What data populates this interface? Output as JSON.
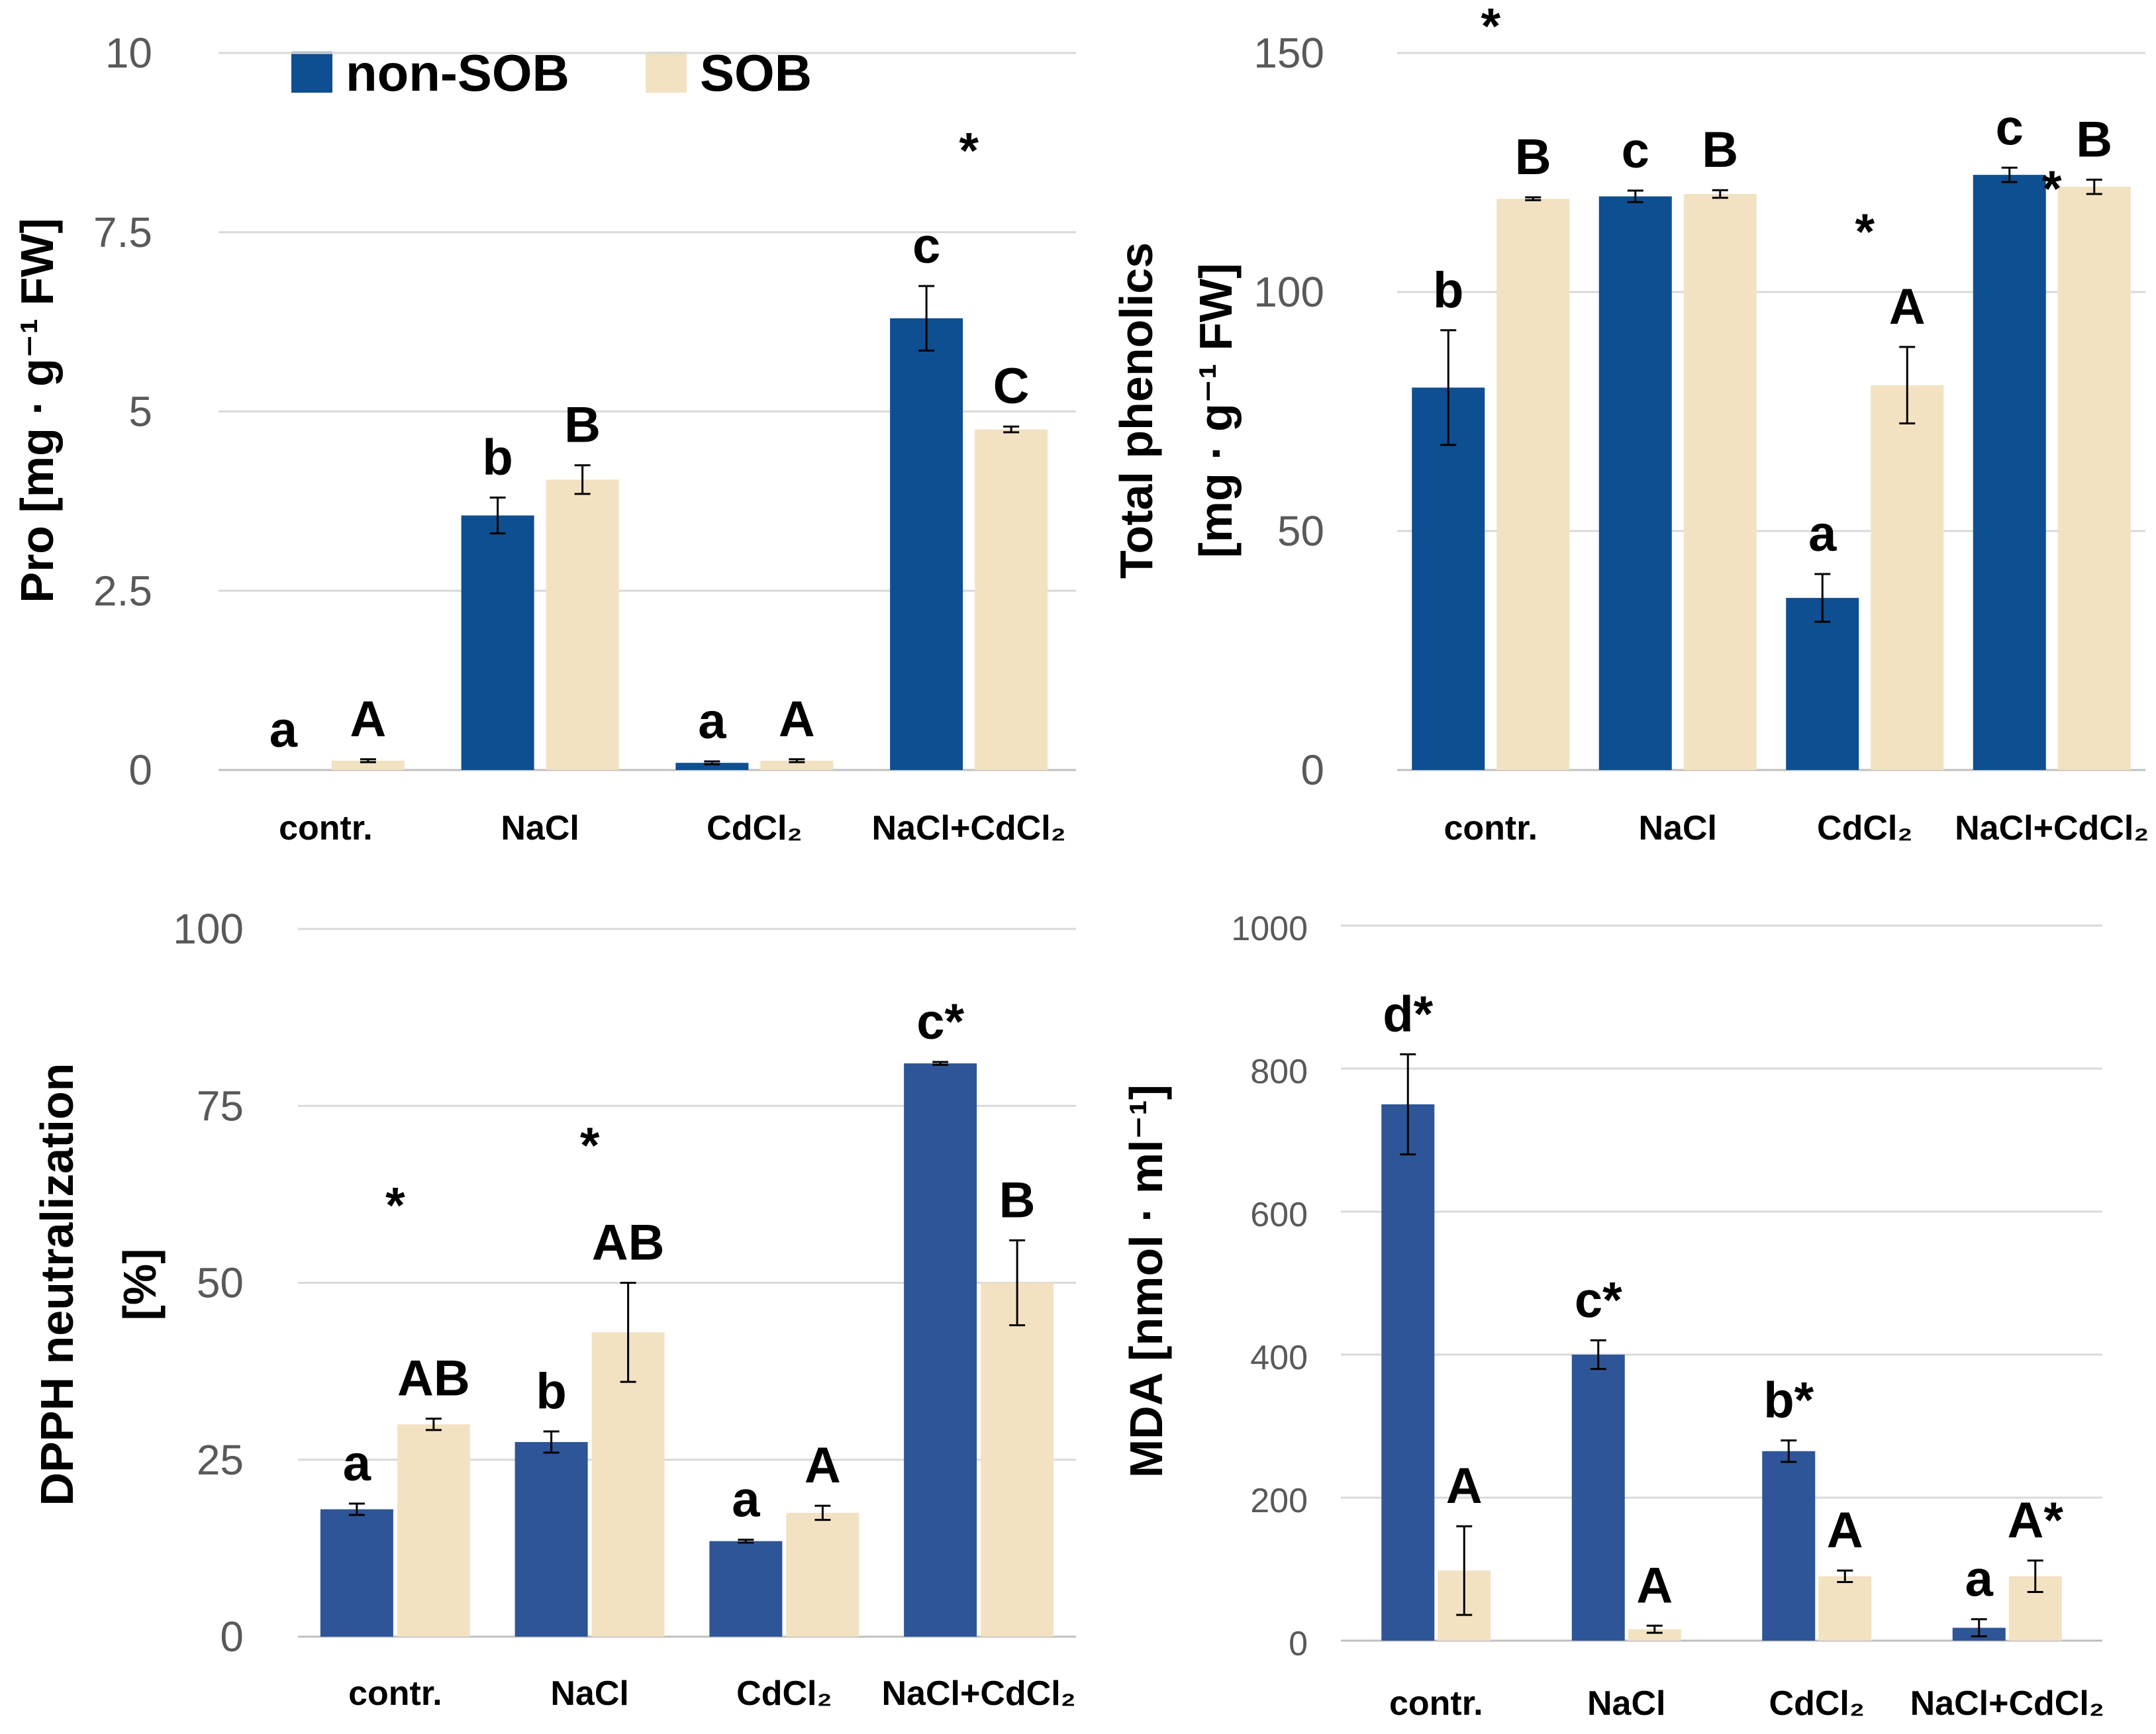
{
  "legend": {
    "series": [
      {
        "name": "non-SOB",
        "color": "#0E4F91"
      },
      {
        "name": "SOB",
        "color": "#F2E2C2"
      }
    ]
  },
  "chart_data": [
    {
      "id": "pro",
      "type": "bar",
      "title": "",
      "xlabel": "",
      "ylabel": "Pro [mg · g⁻¹ FW]",
      "ylim": [
        0,
        10
      ],
      "yticks": [
        "0",
        "2.5",
        "5",
        "7.5",
        "10"
      ],
      "ytick_values": [
        0,
        2.5,
        5,
        7.5,
        10
      ],
      "grid": true,
      "categories": [
        "contr.",
        "NaCl",
        "CdCl₂",
        "NaCl+CdCl₂"
      ],
      "colors": [
        "#0E4F91",
        "#F2E2C2"
      ],
      "series": [
        {
          "name": "non-SOB",
          "values": [
            0,
            3.55,
            0.1,
            6.3
          ],
          "errors": [
            0,
            0.25,
            0.02,
            0.45
          ],
          "labels": [
            "a",
            "b",
            "a",
            "c"
          ],
          "stars": [
            "",
            "",
            "",
            ""
          ]
        },
        {
          "name": "SOB",
          "values": [
            0.13,
            4.05,
            0.13,
            4.75
          ],
          "errors": [
            0.02,
            0.2,
            0.02,
            0.04
          ],
          "labels": [
            "A",
            "B",
            "A",
            "C"
          ],
          "stars": [
            "",
            "",
            "",
            ""
          ]
        }
      ],
      "annotations": [
        {
          "text": "*",
          "category": 3,
          "value": 8.4
        }
      ]
    },
    {
      "id": "phenolics",
      "type": "bar",
      "title": "",
      "xlabel": "",
      "ylabel": [
        "Total phenolics",
        "[mg · g⁻¹ FW]"
      ],
      "ylim": [
        0,
        150
      ],
      "yticks": [
        "0",
        "50",
        "100",
        "150"
      ],
      "ytick_values": [
        0,
        50,
        100,
        150
      ],
      "grid": true,
      "categories": [
        "contr.",
        "NaCl",
        "CdCl₂",
        "NaCl+CdCl₂"
      ],
      "colors": [
        "#0E4F91",
        "#F2E2C2"
      ],
      "series": [
        {
          "name": "non-SOB",
          "values": [
            80,
            120,
            36,
            124.5
          ],
          "errors": [
            12,
            1.2,
            5,
            1.5
          ],
          "labels": [
            "b",
            "c",
            "a",
            "c"
          ],
          "stars": [
            "",
            "",
            "",
            ""
          ]
        },
        {
          "name": "SOB",
          "values": [
            119.5,
            120.5,
            80.5,
            122
          ],
          "errors": [
            0.3,
            0.8,
            8,
            1.5
          ],
          "labels": [
            "B",
            "B",
            "A",
            "B"
          ],
          "stars": [
            "",
            "",
            "",
            ""
          ]
        }
      ],
      "annotations": [
        {
          "text": "*",
          "category": 0,
          "value": 152
        },
        {
          "text": "*",
          "category": 2,
          "value": 109
        },
        {
          "text": "*",
          "category": 3,
          "value": 118
        }
      ]
    },
    {
      "id": "dpph",
      "type": "bar",
      "title": "",
      "xlabel": "",
      "ylabel": [
        "DPPH neutralization",
        "[%]"
      ],
      "ylim": [
        0,
        100
      ],
      "yticks": [
        "0",
        "25",
        "50",
        "75",
        "100"
      ],
      "ytick_values": [
        0,
        25,
        50,
        75,
        100
      ],
      "grid": true,
      "categories": [
        "contr.",
        "NaCl",
        "CdCl₂",
        "NaCl+CdCl₂"
      ],
      "colors": [
        "#2E5597",
        "#F2E2C2"
      ],
      "series": [
        {
          "name": "non-SOB",
          "values": [
            18,
            27.5,
            13.5,
            81
          ],
          "errors": [
            0.8,
            1.5,
            0.2,
            0.2
          ],
          "labels": [
            "a",
            "b",
            "a",
            "c*"
          ],
          "stars": [
            "",
            "",
            "",
            ""
          ]
        },
        {
          "name": "SOB",
          "values": [
            30,
            43,
            17.5,
            50
          ],
          "errors": [
            0.8,
            7,
            1,
            6
          ],
          "labels": [
            "AB",
            "AB",
            "A",
            "B"
          ],
          "stars": [
            "",
            "",
            "",
            ""
          ]
        }
      ],
      "annotations": [
        {
          "text": "*",
          "category": 0,
          "value": 58.5
        },
        {
          "text": "*",
          "category": 1,
          "value": 67
        }
      ]
    },
    {
      "id": "mda",
      "type": "bar",
      "title": "",
      "xlabel": "",
      "ylabel": "MDA [nmol · ml⁻¹]",
      "ylim": [
        0,
        1000
      ],
      "yticks": [
        "0",
        "200",
        "400",
        "600",
        "800",
        "1000"
      ],
      "ytick_values": [
        0,
        200,
        400,
        600,
        800,
        1000
      ],
      "grid": true,
      "categories": [
        "contr.",
        "NaCl",
        "CdCl₂",
        "NaCl+CdCl₂"
      ],
      "colors": [
        "#2E5597",
        "#F2E2C2"
      ],
      "series": [
        {
          "name": "non-SOB",
          "values": [
            750,
            400,
            265,
            18
          ],
          "errors": [
            70,
            20,
            15,
            12
          ],
          "labels": [
            "d*",
            "c*",
            "b*",
            "a"
          ],
          "stars": [
            "",
            "",
            "",
            ""
          ]
        },
        {
          "name": "SOB",
          "values": [
            98,
            16,
            90,
            90
          ],
          "errors": [
            62,
            5,
            8,
            22
          ],
          "labels": [
            "A",
            "A",
            "A",
            "A*"
          ],
          "stars": [
            "",
            "",
            "",
            ""
          ]
        }
      ],
      "annotations": []
    }
  ]
}
